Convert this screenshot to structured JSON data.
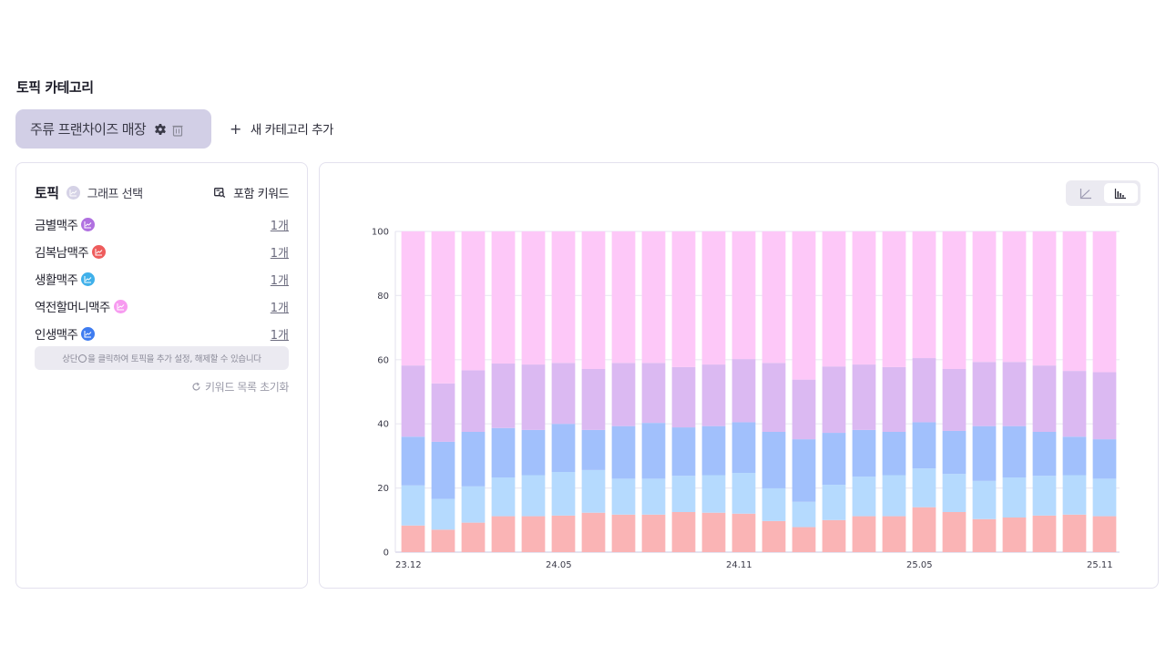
{
  "section": {
    "title": "토픽 카테고리"
  },
  "category_chip": {
    "label": "주류 프랜차이즈 매장",
    "gear_icon": "gear-icon",
    "trash_icon": "trash-icon"
  },
  "add_category": {
    "label": "새 카테고리 추가",
    "icon": "+"
  },
  "left_panel": {
    "title": "토픽",
    "graph_select": "그래프 선택",
    "keywords_label": "포함 키워드",
    "topics": [
      {
        "name": "금별맥주",
        "color": "#b070e0",
        "count": "1개"
      },
      {
        "name": "김복남맥주",
        "color": "#ee5c5c",
        "count": "1개"
      },
      {
        "name": "생활맥주",
        "color": "#3fb0ea",
        "count": "1개"
      },
      {
        "name": "역전할머니맥주",
        "color": "#f79bf0",
        "count": "1개"
      },
      {
        "name": "인생맥주",
        "color": "#3f7cf0",
        "count": "1개"
      }
    ],
    "hint_before": "상단",
    "hint_after": "을 클릭하여 토픽을 추가 설정, 해제할 수 있습니다",
    "reset_label": "키워드 목록 초기화"
  },
  "view_toggle": {
    "options": [
      "line-chart-icon",
      "bar-chart-icon"
    ],
    "active": "bar-chart-icon"
  },
  "chart_data": {
    "type": "bar",
    "stacked": true,
    "title": "",
    "xlabel": "",
    "ylabel": "",
    "ylim": [
      0,
      100
    ],
    "yticks": [
      0,
      20,
      40,
      60,
      80,
      100
    ],
    "grid": true,
    "categories": [
      "23.12",
      "24.01",
      "24.02",
      "24.03",
      "24.04",
      "24.05",
      "24.06",
      "24.07",
      "24.08",
      "24.09",
      "24.10",
      "24.11",
      "24.12",
      "25.01",
      "25.02",
      "25.03",
      "25.04",
      "25.05",
      "25.06",
      "25.07",
      "25.08",
      "25.09",
      "25.10",
      "25.11"
    ],
    "xtick_labels": [
      "23.12",
      "24.05",
      "24.11",
      "25.05",
      "25.11"
    ],
    "series": [
      {
        "name": "김복남맥주",
        "color": "#fab4b5",
        "values": [
          8.3,
          7.0,
          9.2,
          11.2,
          11.2,
          11.4,
          12.3,
          11.7,
          11.7,
          12.5,
          12.3,
          12.0,
          9.7,
          7.8,
          10.0,
          11.2,
          11.2,
          14.0,
          12.5,
          10.3,
          10.8,
          11.4,
          11.7,
          11.2
        ]
      },
      {
        "name": "생활맥주",
        "color": "#b5dafe",
        "values": [
          12.5,
          9.6,
          11.3,
          12.1,
          12.8,
          13.6,
          13.3,
          11.2,
          11.2,
          11.3,
          11.7,
          12.7,
          10.2,
          7.9,
          11.0,
          12.3,
          12.8,
          12.1,
          11.9,
          11.9,
          12.5,
          12.4,
          12.3,
          11.7
        ]
      },
      {
        "name": "인생맥주",
        "color": "#a1c0fc",
        "values": [
          15.2,
          17.8,
          17.0,
          15.4,
          14.1,
          15.0,
          12.5,
          16.4,
          17.4,
          15.1,
          15.3,
          15.8,
          17.6,
          19.5,
          16.2,
          14.6,
          13.5,
          14.4,
          13.4,
          17.1,
          16.0,
          13.7,
          12.0,
          12.3
        ]
      },
      {
        "name": "금별맥주",
        "color": "#dbb9f2",
        "values": [
          22.2,
          18.2,
          19.2,
          20.1,
          20.4,
          19.0,
          19.0,
          19.7,
          18.7,
          18.8,
          19.2,
          19.7,
          21.5,
          18.6,
          20.7,
          20.4,
          20.2,
          20.0,
          19.3,
          20.0,
          20.0,
          20.7,
          20.5,
          20.9
        ]
      },
      {
        "name": "역전할머니맥주",
        "color": "#fdc8f8",
        "values": [
          41.8,
          47.4,
          43.3,
          41.2,
          41.5,
          41.0,
          42.9,
          41.0,
          41.0,
          42.3,
          41.5,
          39.8,
          41.0,
          46.2,
          42.1,
          41.5,
          42.3,
          39.5,
          42.9,
          40.7,
          40.7,
          41.8,
          43.5,
          43.9
        ]
      }
    ]
  }
}
